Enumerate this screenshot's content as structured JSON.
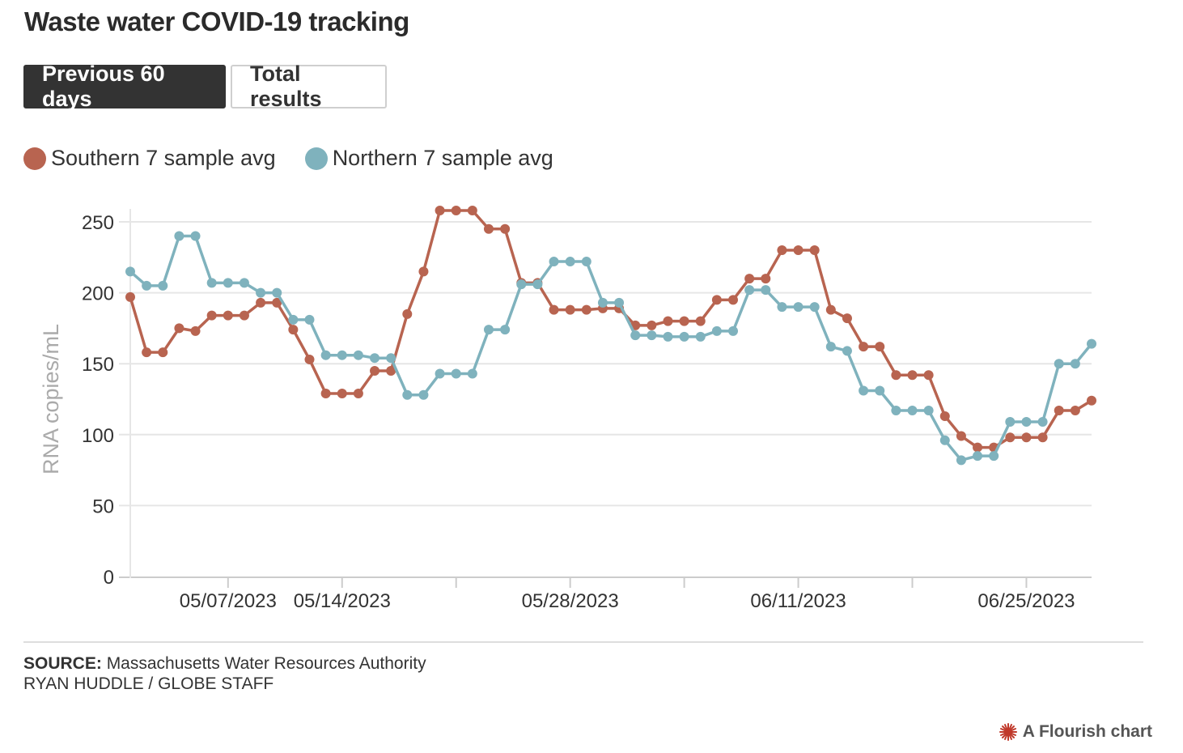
{
  "header": {
    "title": "Waste water COVID-19 tracking"
  },
  "tabs": [
    {
      "label": "Previous 60 days",
      "active": true
    },
    {
      "label": "Total results",
      "active": false
    }
  ],
  "legend": [
    {
      "label": "Southern 7 sample avg",
      "color": "#b86450"
    },
    {
      "label": "Northern 7 sample avg",
      "color": "#7fb2bd"
    }
  ],
  "footer": {
    "source_label": "SOURCE:",
    "source_text": "Massachusetts Water Resources Authority",
    "credit": "RYAN HUDDLE / GLOBE STAFF",
    "flourish": "A Flourish chart",
    "flourish_icon": "flourish-star-icon"
  },
  "chart_data": {
    "type": "line",
    "ylabel": "RNA copies/mL",
    "ylim": [
      0,
      250
    ],
    "yticks": [
      0,
      50,
      100,
      150,
      200,
      250
    ],
    "grid": true,
    "x_start": "05/01/2023",
    "x_tick_labels": [
      "05/07/2023",
      "05/14/2023",
      "05/28/2023",
      "06/11/2023",
      "06/25/2023"
    ],
    "x_tick_marks": [
      "05/07/2023",
      "05/14/2023",
      "05/21/2023",
      "05/28/2023",
      "06/04/2023",
      "06/11/2023",
      "06/18/2023",
      "06/25/2023"
    ],
    "x": [
      "05/01/2023",
      "05/02/2023",
      "05/03/2023",
      "05/04/2023",
      "05/05/2023",
      "05/06/2023",
      "05/07/2023",
      "05/08/2023",
      "05/09/2023",
      "05/10/2023",
      "05/11/2023",
      "05/12/2023",
      "05/13/2023",
      "05/14/2023",
      "05/15/2023",
      "05/16/2023",
      "05/17/2023",
      "05/18/2023",
      "05/19/2023",
      "05/20/2023",
      "05/21/2023",
      "05/22/2023",
      "05/23/2023",
      "05/24/2023",
      "05/25/2023",
      "05/26/2023",
      "05/27/2023",
      "05/28/2023",
      "05/29/2023",
      "05/30/2023",
      "05/31/2023",
      "06/01/2023",
      "06/02/2023",
      "06/03/2023",
      "06/04/2023",
      "06/05/2023",
      "06/06/2023",
      "06/07/2023",
      "06/08/2023",
      "06/09/2023",
      "06/10/2023",
      "06/11/2023",
      "06/12/2023",
      "06/13/2023",
      "06/14/2023",
      "06/15/2023",
      "06/16/2023",
      "06/17/2023",
      "06/18/2023",
      "06/19/2023",
      "06/20/2023",
      "06/21/2023",
      "06/22/2023",
      "06/23/2023",
      "06/24/2023",
      "06/25/2023",
      "06/26/2023",
      "06/27/2023",
      "06/28/2023",
      "06/29/2023"
    ],
    "series": [
      {
        "name": "Southern 7 sample avg",
        "color": "#b86450",
        "values": [
          197,
          158,
          158,
          175,
          173,
          184,
          184,
          184,
          193,
          193,
          174,
          153,
          129,
          129,
          129,
          145,
          145,
          185,
          215,
          258,
          258,
          258,
          245,
          245,
          207,
          207,
          188,
          188,
          188,
          189,
          189,
          177,
          177,
          180,
          180,
          180,
          195,
          195,
          210,
          210,
          230,
          230,
          230,
          188,
          182,
          162,
          162,
          142,
          142,
          142,
          113,
          99,
          91,
          91,
          98,
          98,
          98,
          117,
          117,
          124
        ]
      },
      {
        "name": "Northern 7 sample avg",
        "color": "#7fb2bd",
        "values": [
          215,
          205,
          205,
          240,
          240,
          207,
          207,
          207,
          200,
          200,
          181,
          181,
          156,
          156,
          156,
          154,
          154,
          128,
          128,
          143,
          143,
          143,
          174,
          174,
          206,
          206,
          222,
          222,
          222,
          193,
          193,
          170,
          170,
          169,
          169,
          169,
          173,
          173,
          202,
          202,
          190,
          190,
          190,
          162,
          159,
          131,
          131,
          117,
          117,
          117,
          96,
          82,
          85,
          85,
          109,
          109,
          109,
          150,
          150,
          164
        ]
      }
    ]
  }
}
